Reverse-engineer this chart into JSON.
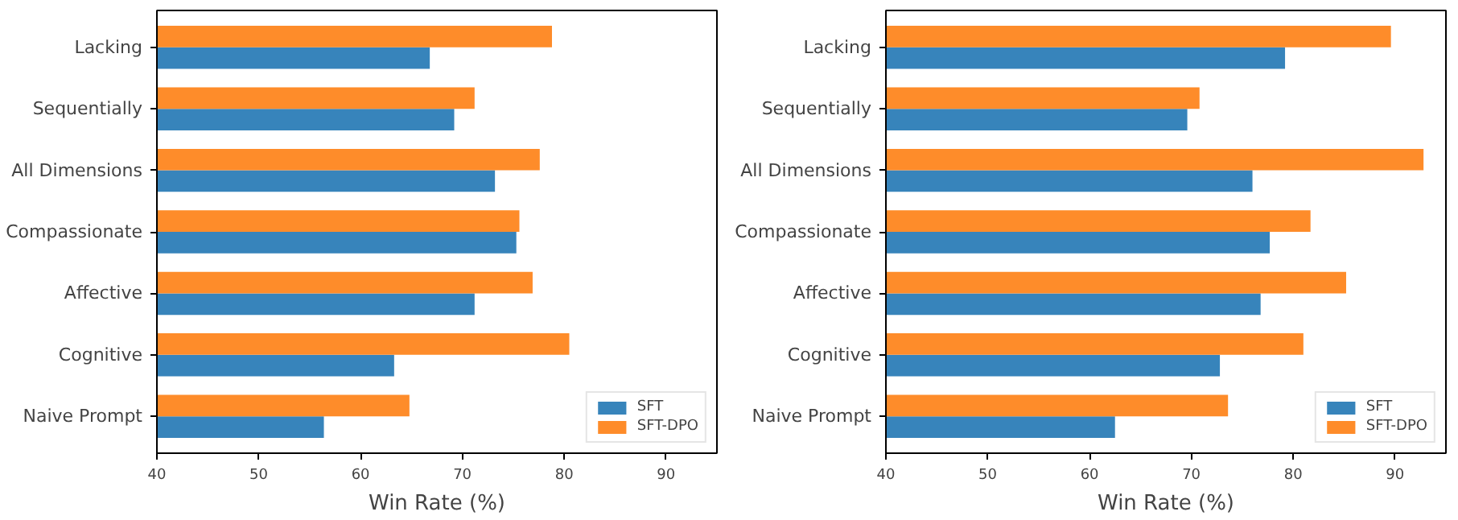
{
  "chart_data": [
    {
      "type": "bar",
      "orientation": "horizontal",
      "categories": [
        "Lacking",
        "Sequentially",
        "All Dimensions",
        "Compassionate",
        "Affective",
        "Cognitive",
        "Naive Prompt"
      ],
      "xlabel": "Win Rate (%)",
      "xlim": [
        40,
        95
      ],
      "xticks": [
        40,
        50,
        60,
        70,
        80,
        90
      ],
      "legend": "bottom right",
      "grid": false,
      "series": [
        {
          "name": "SFT",
          "color": "#3784bb",
          "values": [
            66.8,
            69.2,
            73.2,
            75.3,
            71.2,
            63.3,
            56.4
          ]
        },
        {
          "name": "SFT-DPO",
          "color": "#fe8c2a",
          "values": [
            78.8,
            71.2,
            77.6,
            75.6,
            76.9,
            80.5,
            64.8
          ]
        }
      ]
    },
    {
      "type": "bar",
      "orientation": "horizontal",
      "categories": [
        "Lacking",
        "Sequentially",
        "All Dimensions",
        "Compassionate",
        "Affective",
        "Cognitive",
        "Naive Prompt"
      ],
      "xlabel": "Win Rate (%)",
      "xlim": [
        40,
        95
      ],
      "xticks": [
        40,
        50,
        60,
        70,
        80,
        90
      ],
      "legend": "bottom right",
      "grid": false,
      "series": [
        {
          "name": "SFT",
          "color": "#3784bb",
          "values": [
            79.2,
            69.6,
            76.0,
            77.7,
            76.8,
            72.8,
            62.5
          ]
        },
        {
          "name": "SFT-DPO",
          "color": "#fe8c2a",
          "values": [
            89.6,
            70.8,
            92.8,
            81.7,
            85.2,
            81.0,
            73.6
          ]
        }
      ]
    }
  ]
}
